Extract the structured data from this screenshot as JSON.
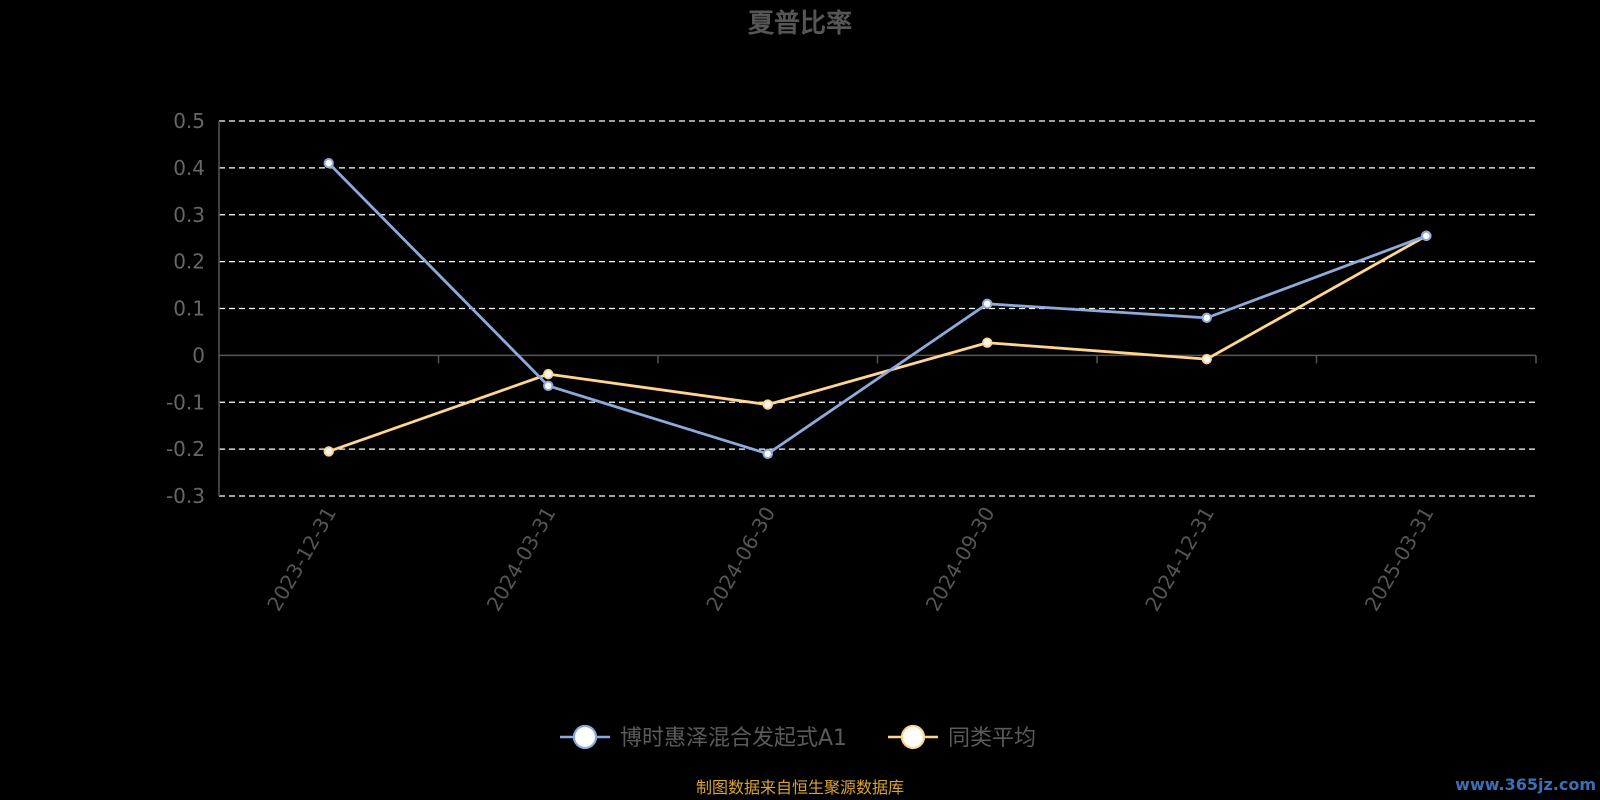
{
  "chart_data": {
    "type": "line",
    "title": "夏普比率",
    "categories": [
      "2023-12-31",
      "2024-03-31",
      "2024-06-30",
      "2024-09-30",
      "2024-12-31",
      "2025-03-31"
    ],
    "series": [
      {
        "name": "博时惠泽混合发起式A1",
        "values": [
          0.41,
          -0.065,
          -0.21,
          0.11,
          0.08,
          0.255
        ],
        "color": "#8eaadb"
      },
      {
        "name": "同类平均",
        "values": [
          -0.205,
          -0.04,
          -0.105,
          0.027,
          -0.008,
          0.255
        ],
        "color": "#ffd591"
      }
    ],
    "yticks": [
      0.5,
      0.4,
      0.3,
      0.2,
      0.1,
      0,
      -0.1,
      -0.2,
      -0.3
    ],
    "ylim": [
      -0.3,
      0.5
    ],
    "grid": true,
    "legend_position": "bottom-center"
  },
  "footer": {
    "source": "制图数据来自恒生聚源数据库",
    "watermark": "www.365jz.com"
  },
  "colors": {
    "background": "#000000",
    "grid": "#ffffff",
    "axis": "#555555"
  }
}
